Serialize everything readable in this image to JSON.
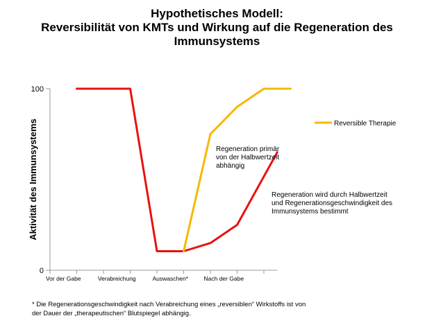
{
  "title": {
    "line1": "Hypothetisches Modell:",
    "line2": "Reversibilität von KMTs und Wirkung auf die Regeneration des",
    "line3": "Immunsystems"
  },
  "chart_data": {
    "type": "line",
    "ylabel": "Aktivität des Immunsystems",
    "xlabel": "",
    "ylim": [
      0,
      100
    ],
    "yticks": [
      "0",
      "100"
    ],
    "categories": [
      "Vor der Gabe",
      "Verabreichung",
      "Auswaschen*",
      "Nach der Gabe"
    ],
    "x_domain": [
      0,
      8.5
    ],
    "category_positions": [
      0.5,
      2.5,
      4.5,
      6.5
    ],
    "grid": false,
    "legend_position": "right",
    "series": [
      {
        "name": "",
        "color": "#e8110f",
        "points": [
          [
            1,
            100
          ],
          [
            3,
            100
          ],
          [
            4,
            10.5
          ],
          [
            5,
            10.5
          ],
          [
            6,
            15
          ],
          [
            7,
            25
          ],
          [
            8.5,
            65
          ]
        ]
      },
      {
        "name": "Reversible Therapie",
        "color": "#f5b800",
        "points": [
          [
            5,
            10.5
          ],
          [
            6,
            75
          ],
          [
            7,
            90
          ],
          [
            8,
            100
          ],
          [
            9,
            100
          ]
        ]
      }
    ],
    "annotations": [
      {
        "id": "yellow_note",
        "lines": [
          "Regeneration primär",
          "von der Halbwertzeit",
          "abhängig"
        ]
      },
      {
        "id": "red_note",
        "lines": [
          "Regeneration wird durch Halbwertzeit",
          "und Regenerationsgeschwindigkeit des",
          "Immunsystems bestimmt"
        ]
      }
    ]
  },
  "footnote": {
    "line1": "* Die Regenerationsgeschwindigkeit nach Verabreichung eines „reversiblen“ Wirkstoffs ist von",
    "line2": "der Dauer der „therapeutischen“ Blutspiegel abhängig."
  }
}
